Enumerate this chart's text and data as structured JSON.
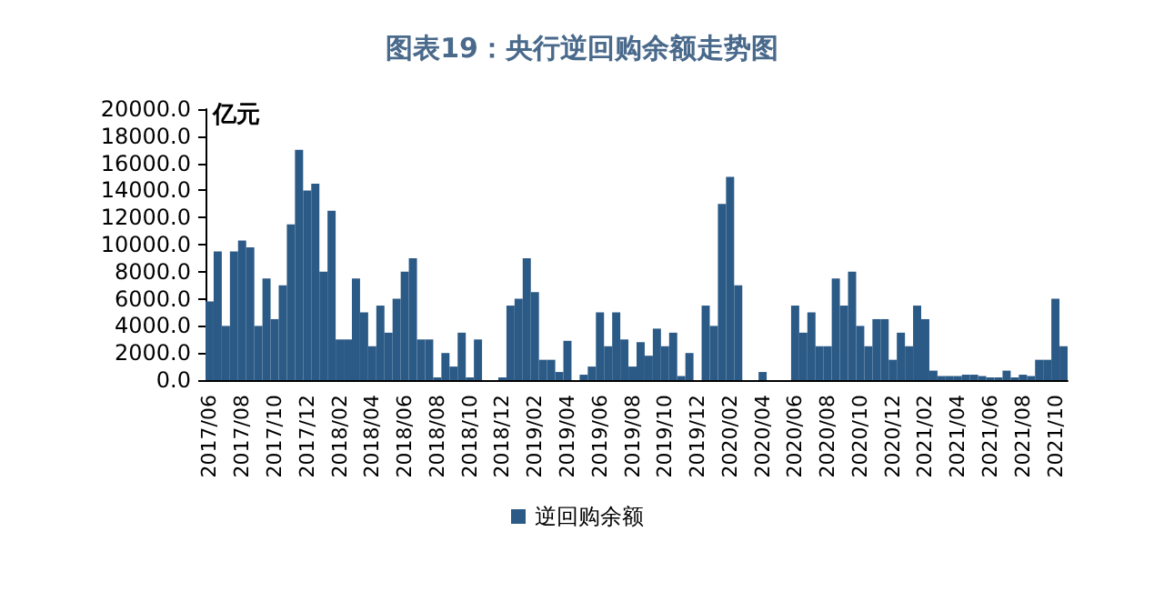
{
  "chart_data": {
    "type": "bar",
    "title": "图表19：央行逆回购余额走势图",
    "ylabel": "亿元",
    "categories": [
      "2017/06",
      null,
      null,
      null,
      "2017/08",
      null,
      null,
      null,
      "2017/10",
      null,
      null,
      null,
      "2017/12",
      null,
      null,
      null,
      "2018/02",
      null,
      null,
      null,
      "2018/04",
      null,
      null,
      null,
      "2018/06",
      null,
      null,
      null,
      "2018/08",
      null,
      null,
      null,
      "2018/10",
      null,
      null,
      null,
      "2018/12",
      null,
      null,
      null,
      "2019/02",
      null,
      null,
      null,
      "2019/04",
      null,
      null,
      null,
      "2019/06",
      null,
      null,
      null,
      "2019/08",
      null,
      null,
      null,
      "2019/10",
      null,
      null,
      null,
      "2019/12",
      null,
      null,
      null,
      "2020/02",
      null,
      null,
      null,
      "2020/04",
      null,
      null,
      null,
      "2020/06",
      null,
      null,
      null,
      "2020/08",
      null,
      null,
      null,
      "2020/10",
      null,
      null,
      null,
      "2020/12",
      null,
      null,
      null,
      "2021/02",
      null,
      null,
      null,
      "2021/04",
      null,
      null,
      null,
      "2021/06",
      null,
      null,
      null,
      "2021/08",
      null,
      null,
      null,
      "2021/10",
      null
    ],
    "series": [
      {
        "name": "逆回购余额",
        "color": "#2b5a86",
        "values": [
          5800,
          9500,
          4000,
          9500,
          10300,
          9800,
          4000,
          7500,
          4500,
          7000,
          11500,
          17000,
          14000,
          14500,
          8000,
          12500,
          3000,
          3000,
          7500,
          5000,
          2500,
          5500,
          3500,
          6000,
          8000,
          9000,
          3000,
          3000,
          200,
          2000,
          1000,
          3500,
          200,
          3000,
          0,
          0,
          200,
          5500,
          6000,
          9000,
          6500,
          1500,
          1500,
          600,
          2900,
          0,
          400,
          1000,
          5000,
          2500,
          5000,
          3000,
          1000,
          2800,
          1800,
          3800,
          2500,
          3500,
          300,
          2000,
          0,
          5500,
          4000,
          13000,
          15000,
          7000,
          0,
          0,
          600,
          0,
          0,
          0,
          5500,
          3500,
          5000,
          2500,
          2500,
          7500,
          5500,
          8000,
          4000,
          2500,
          4500,
          4500,
          1500,
          3500,
          2500,
          5500,
          4500,
          700,
          300,
          300,
          300,
          400,
          400,
          300,
          200,
          200,
          700,
          200,
          400,
          300,
          1500,
          1500,
          6000,
          2500
        ]
      }
    ],
    "ylim": [
      0,
      20000
    ],
    "yticks": [
      {
        "value": 0,
        "label": "0.0"
      },
      {
        "value": 2000,
        "label": "2000.0"
      },
      {
        "value": 4000,
        "label": "4000.0"
      },
      {
        "value": 6000,
        "label": "6000.0"
      },
      {
        "value": 8000,
        "label": "8000.0"
      },
      {
        "value": 10000,
        "label": "10000.0"
      },
      {
        "value": 12000,
        "label": "12000.0"
      },
      {
        "value": 14000,
        "label": "14000.0"
      },
      {
        "value": 16000,
        "label": "16000.0"
      },
      {
        "value": 18000,
        "label": "18000.0"
      },
      {
        "value": 20000,
        "label": "20000.0"
      }
    ],
    "grid": false,
    "legend": "bottom"
  }
}
